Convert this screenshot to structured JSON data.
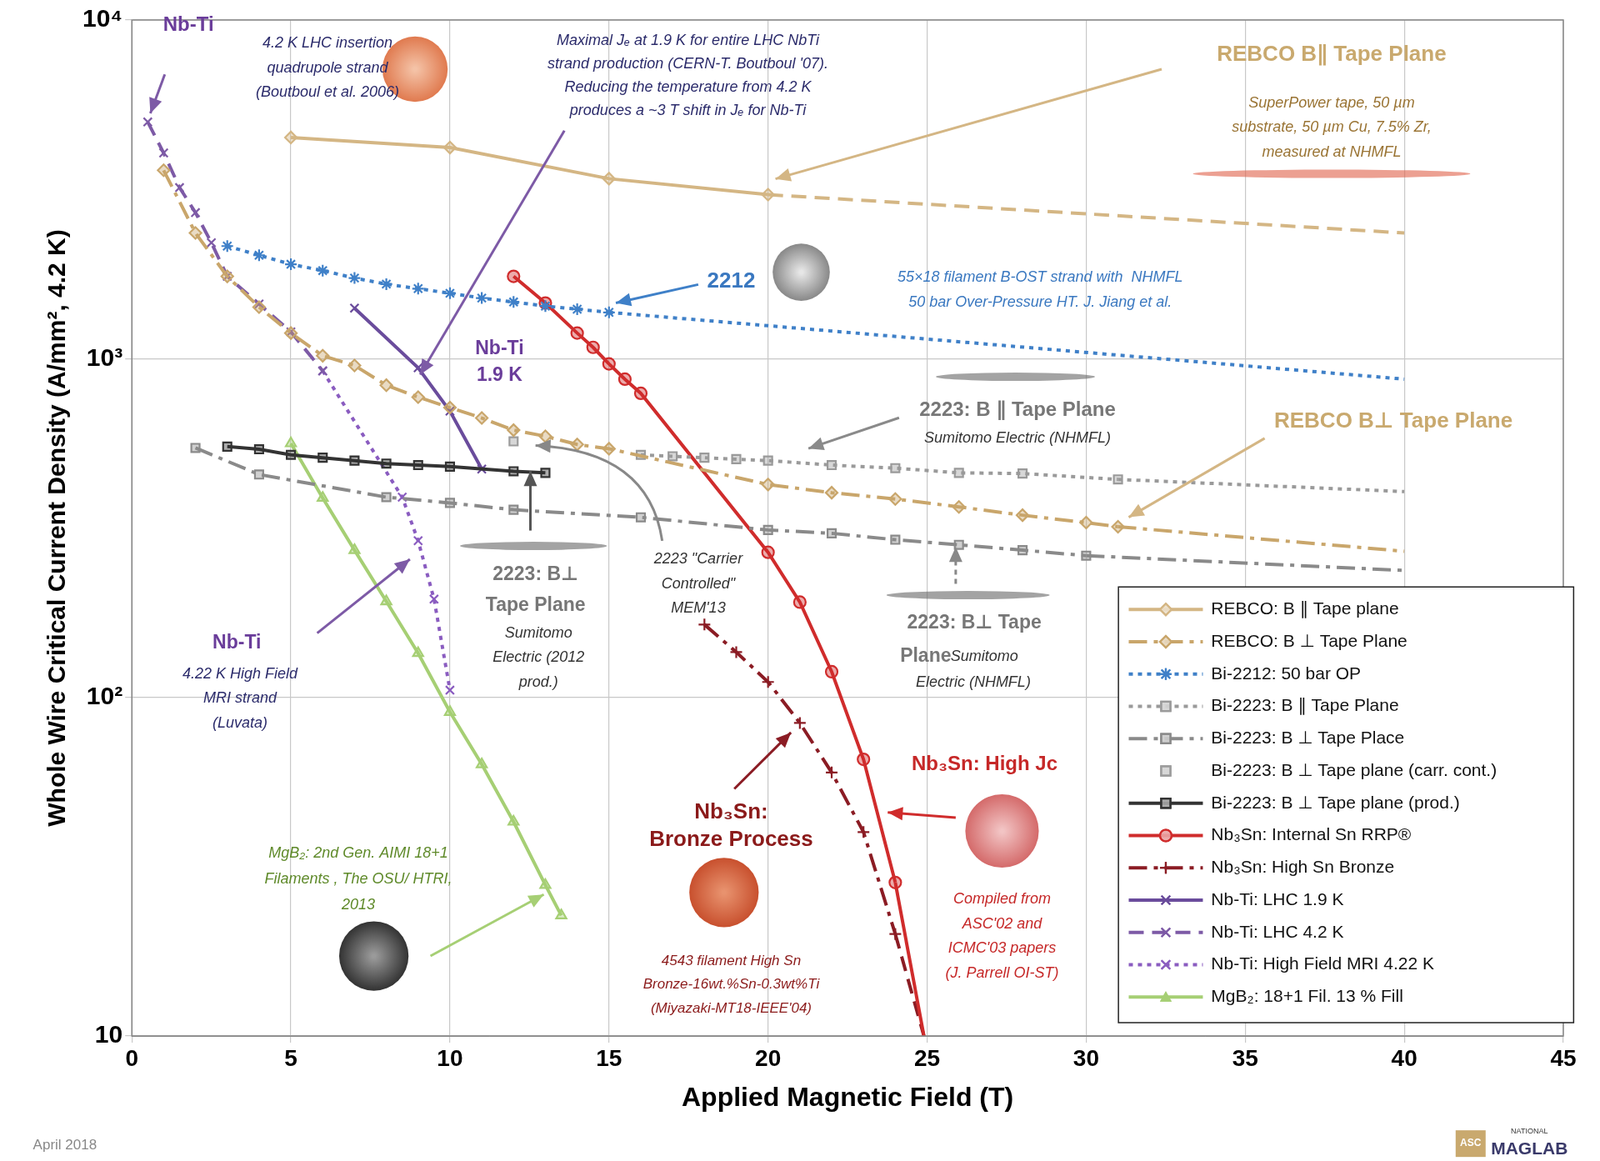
{
  "chart_data": {
    "type": "line",
    "x_label": "Applied Magnetic Field (T)",
    "y_label": "Whole Wire Critical Current Density (A/mm², 4.2 K)",
    "xlim": [
      0,
      45
    ],
    "xticks": [
      0,
      5,
      10,
      15,
      20,
      25,
      30,
      35,
      40,
      45
    ],
    "ylim": [
      10,
      10000
    ],
    "yticks": [
      10,
      {
        "value": 100,
        "label": "10²"
      },
      {
        "value": 1000,
        "label": "10³"
      },
      {
        "value": 10000,
        "label": "10⁴"
      }
    ],
    "log": "y",
    "grid": true,
    "legend": "lower right",
    "series": [
      {
        "name": "REBCO: B ∥ Tape plane",
        "color": "#d4b684",
        "line_style": "solid",
        "marker": "diamond",
        "x": [
          5,
          10,
          15,
          20
        ],
        "values": [
          4500,
          4200,
          3400,
          3050
        ],
        "extension": {
          "line_style": "dashed",
          "x": [
            20,
            40
          ],
          "values": [
            3050,
            2350
          ]
        }
      },
      {
        "name": "REBCO: B ⊥ Tape Plane",
        "color": "#c9a66b",
        "line_style": "dashdot",
        "marker": "diamond",
        "x": [
          1,
          2,
          3,
          4,
          5,
          6,
          7,
          8,
          9,
          10,
          11,
          12,
          13,
          14,
          15,
          20,
          22,
          24,
          26,
          28,
          30,
          31
        ],
        "values": [
          3600,
          2350,
          1750,
          1420,
          1190,
          1020,
          955,
          835,
          770,
          717,
          668,
          615,
          590,
          558,
          542,
          425,
          402,
          385,
          365,
          345,
          328,
          319
        ],
        "extension": {
          "line_style": "dashdot",
          "x": [
            31,
            40
          ],
          "values": [
            319,
            270
          ]
        }
      },
      {
        "name": "Bi-2212: 50 bar OP",
        "color": "#3f80c8",
        "line_style": "dotted",
        "marker": "asterisk",
        "x": [
          3,
          4,
          5,
          6,
          7,
          8,
          9,
          10,
          11,
          12,
          13,
          14,
          15
        ],
        "values": [
          2150,
          2020,
          1900,
          1820,
          1730,
          1660,
          1610,
          1560,
          1510,
          1470,
          1430,
          1400,
          1370
        ],
        "extension": {
          "line_style": "dotted",
          "x": [
            15,
            40
          ],
          "values": [
            1370,
            870
          ]
        }
      },
      {
        "name": "Bi-2223: B ∥ Tape Plane",
        "color": "#9a9a9a",
        "line_style": "dotted",
        "marker": "square",
        "x": [
          16,
          17,
          18,
          19,
          20,
          22,
          24,
          26,
          28,
          31
        ],
        "values": [
          520,
          515,
          510,
          505,
          500,
          485,
          475,
          460,
          458,
          440
        ],
        "extension": {
          "line_style": "dotted",
          "x": [
            31,
            40
          ],
          "values": [
            440,
            405
          ]
        }
      },
      {
        "name": "Bi-2223: B ⊥ Tape Place",
        "color": "#8a8a8a",
        "line_style": "dashdot",
        "marker": "square",
        "x": [
          2,
          4,
          8,
          10,
          12,
          16,
          20,
          22,
          24,
          26,
          28,
          30
        ],
        "values": [
          545,
          455,
          390,
          375,
          358,
          340,
          312,
          305,
          292,
          282,
          272,
          262
        ],
        "extension": {
          "line_style": "dashdot",
          "x": [
            30,
            40
          ],
          "values": [
            262,
            237
          ]
        }
      },
      {
        "name": "Bi-2223: B ⊥ Tape plane (carr. cont.)",
        "color": "#9c9c9c",
        "line_style": "none",
        "marker": "square",
        "x": [
          12
        ],
        "values": [
          570
        ]
      },
      {
        "name": "Bi-2223: B ⊥ Tape plane (prod.)",
        "color": "#333333",
        "line_style": "solid",
        "marker": "square",
        "x": [
          3,
          4,
          5,
          6,
          7,
          8,
          9,
          10,
          12,
          13
        ],
        "values": [
          550,
          540,
          520,
          510,
          500,
          490,
          485,
          480,
          465,
          460
        ]
      },
      {
        "name": "Nb₃Sn: Internal Sn RRP®",
        "color": "#d02c2c",
        "line_style": "solid",
        "marker": "circle",
        "x": [
          12,
          13,
          14,
          14.5,
          15,
          15.5,
          16,
          20,
          21,
          22,
          23,
          24
        ],
        "values": [
          1750,
          1460,
          1190,
          1080,
          965,
          870,
          790,
          268,
          191,
          119,
          65.6,
          28.4
        ],
        "extension": {
          "line_style": "solid",
          "x": [
            24,
            24.9
          ],
          "values": [
            28.4,
            10
          ]
        }
      },
      {
        "name": "Nb₃Sn: High Sn Bronze",
        "color": "#8b1c24",
        "line_style": "dashdot",
        "marker": "plus",
        "x": [
          18,
          19,
          20,
          21,
          22,
          23,
          24
        ],
        "values": [
          164,
          136,
          111,
          84,
          60,
          40,
          20
        ],
        "extension": {
          "line_style": "dashed",
          "x": [
            24,
            24.9
          ],
          "values": [
            20,
            10
          ]
        }
      },
      {
        "name": "Nb-Ti: LHC 1.9 K",
        "color": "#6a4c9c",
        "line_style": "solid",
        "marker": "x",
        "x": [
          7,
          9,
          10,
          11
        ],
        "values": [
          1410,
          940,
          700,
          472
        ]
      },
      {
        "name": "Nb-Ti: LHC 4.2 K",
        "color": "#7d5aa6",
        "line_style": "dashed",
        "marker": "x",
        "x": [
          0.5,
          1,
          1.5,
          2,
          2.5,
          3,
          4,
          5,
          6
        ],
        "values": [
          5000,
          4050,
          3200,
          2700,
          2200,
          1750,
          1450,
          1200,
          920
        ]
      },
      {
        "name": "Nb-Ti: High Field MRI 4.22 K",
        "color": "#8a5cc0",
        "line_style": "dotted",
        "marker": "x",
        "x": [
          6,
          8.5,
          9,
          9.5,
          10
        ],
        "values": [
          920,
          390,
          290,
          195,
          105
        ]
      },
      {
        "name": "MgB₂: 18+1 Fil. 13 % Fill",
        "color": "#a6cf74",
        "line_style": "solid",
        "marker": "triangle",
        "x": [
          5,
          6,
          7,
          8,
          9,
          10,
          11,
          12,
          13,
          13.5
        ],
        "values": [
          562,
          388,
          272,
          192,
          135,
          90.5,
          63.4,
          42.9,
          27.9,
          22.7
        ]
      }
    ],
    "annotations": [
      {
        "text": [
          "Nb-Ti"
        ],
        "color": "#6a3d9a"
      },
      {
        "text": [
          "4.2 K LHC insertion",
          "quadrupole strand",
          "(Boutboul et al. 2006)"
        ],
        "color": "#2b2b6b"
      },
      {
        "text": [
          "Maximal Jₑ at 1.9 K for entire LHC NbTi",
          "strand production (CERN-T. Boutboul '07).",
          "Reducing the temperature from 4.2 K",
          "produces a ~3 T shift in Jₑ for Nb-Ti"
        ],
        "color": "#2b2b6b"
      },
      {
        "text": [
          "REBCO B∥ Tape Plane"
        ],
        "color": "#c9a96e"
      },
      {
        "text": [
          "SuperPower tape, 50 µm",
          "substrate, 50 µm Cu, 7.5% Zr,",
          "measured at NHMFL"
        ],
        "color": "#9a7434"
      },
      {
        "text": [
          "2212"
        ],
        "color": "#3a78c0"
      },
      {
        "text": [
          "55×18 filament B-OST strand with  NHMFL",
          "50 bar Over-Pressure HT. J. Jiang et al."
        ],
        "color": "#3a78c0"
      },
      {
        "text": [
          "Nb-Ti",
          "1.9 K"
        ],
        "color": "#6a3d9a"
      },
      {
        "text": [
          "2223: B ∥ Tape Plane"
        ],
        "color": "#777777"
      },
      {
        "text": [
          "Sumitomo Electric (NHMFL)"
        ],
        "color": "#333333"
      },
      {
        "text": [
          "REBCO B⊥ Tape Plane"
        ],
        "color": "#c9a96e"
      },
      {
        "text": [
          "2223: B⊥",
          "Tape Plane"
        ],
        "color": "#777777"
      },
      {
        "text": [
          "Sumitomo",
          "Electric (2012",
          "prod.)"
        ],
        "color": "#333333"
      },
      {
        "text": [
          "2223 \"Carrier",
          "Controlled\"",
          "MEM'13"
        ],
        "color": "#333333"
      },
      {
        "text": [
          "2223: B⊥ Tape"
        ],
        "color": "#777777"
      },
      {
        "text": [
          "Plane"
        ],
        "color": "#777777"
      },
      {
        "text": [
          "Sumitomo"
        ],
        "color": "#333333"
      },
      {
        "text": [
          "Electric (NHMFL)"
        ],
        "color": "#333333"
      },
      {
        "text": [
          "Nb-Ti"
        ],
        "color": "#6a3d9a"
      },
      {
        "text": [
          "4.22 K High Field",
          "MRI strand",
          "(Luvata)"
        ],
        "color": "#2b2b6b"
      },
      {
        "text": [
          "Nb₃Sn: High Jc"
        ],
        "color": "#c62828"
      },
      {
        "text": [
          "Nb₃Sn:",
          "Bronze Process"
        ],
        "color": "#8b1a1a"
      },
      {
        "text": [
          "Compiled from",
          "ASC'02 and",
          "ICMC'03 papers",
          "(J. Parrell OI-ST)"
        ],
        "color": "#c62828"
      },
      {
        "text": [
          "MgB₂: 2nd Gen. AIMI 18+1",
          "Filaments , The OSU/ HTRI,",
          "2013"
        ],
        "color": "#5f8a2a"
      },
      {
        "text": [
          "4543 filament High Sn",
          "Bronze-16wt.%Sn-0.3wt%Ti",
          "(Miyazaki-MT18-IEEE'04)"
        ],
        "color": "#8b1a1a"
      }
    ],
    "footer": "April 2018",
    "logo": [
      "ASC",
      "NATIONAL",
      "MAGLAB"
    ]
  }
}
